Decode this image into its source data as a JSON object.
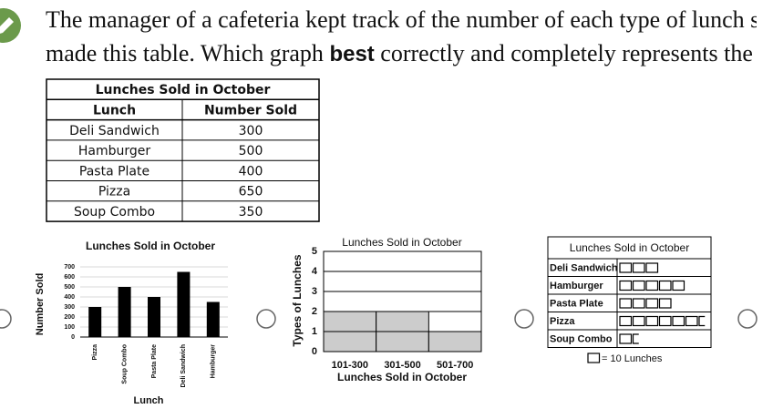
{
  "question": {
    "line1": "The manager of a cafeteria kept track of the number of each type of lunch s",
    "line2_start": "made this table. Which graph",
    "line2_bold": "best",
    "line2_end": "correctly and completely represents the"
  },
  "table": {
    "title": "Lunches Sold in October",
    "headers": [
      "Lunch",
      "Number Sold"
    ],
    "rows": [
      [
        "Deli Sandwich",
        300
      ],
      [
        "Hamburger",
        500
      ],
      [
        "Pasta Plate",
        400
      ],
      [
        "Pizza",
        650
      ],
      [
        "Soup Combo",
        350
      ]
    ]
  },
  "options": [
    {
      "type": "bar",
      "title": "Lunches Sold in October",
      "y_label": "Number Sold",
      "x_label": "Lunch",
      "categories": [
        "Pizza",
        "Soup Combo",
        "Pasta Plate",
        "Deli Sandwich",
        "Hamburger"
      ],
      "values": [
        300,
        500,
        400,
        650,
        350
      ],
      "color": "#000000",
      "ylim": [
        0,
        700
      ],
      "yticks": [
        0,
        100,
        200,
        300,
        400,
        500,
        600,
        700
      ],
      "grid": true
    },
    {
      "type": "histogram",
      "title": "Lunches Sold in October",
      "y_label": "Types of Lunches",
      "x_label": "Lunches Sold in October",
      "categories": [
        "101-300",
        "301-500",
        "501-700"
      ],
      "values": [
        2,
        2,
        1
      ],
      "color": "#cccccc",
      "ylim": [
        0,
        5
      ],
      "yticks": [
        0,
        1,
        2,
        3,
        4,
        5
      ],
      "grid": true
    },
    {
      "type": "pictograph",
      "title": "Lunches Sold in October",
      "categories": [
        "Deli Sandwich",
        "Hamburger",
        "Pasta Plate",
        "Pizza",
        "Soup Combo"
      ],
      "values": [
        3,
        5,
        4,
        6.5,
        1.5
      ],
      "key": "= 10 Lunches"
    }
  ]
}
